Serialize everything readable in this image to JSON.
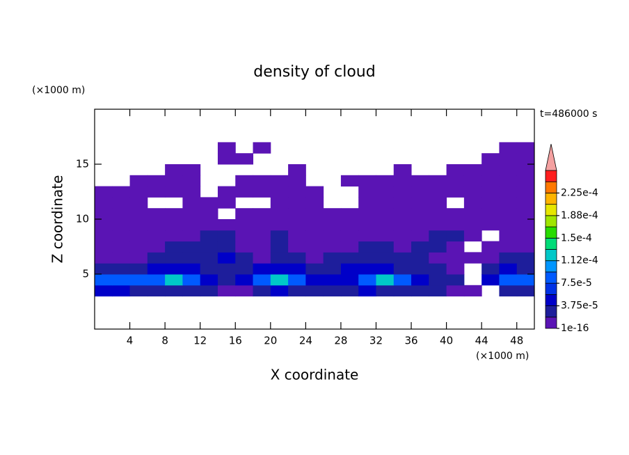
{
  "chart_data": {
    "type": "contour",
    "title": "density of cloud",
    "x_label": "X coordinate",
    "y_label": "Z coordinate",
    "x_unit": "(×1000 m)",
    "y_unit": "(×1000 m)",
    "annotation": "t=486000 s",
    "xlim": [
      0,
      50
    ],
    "xticks": [
      4,
      8,
      12,
      16,
      20,
      24,
      28,
      32,
      36,
      40,
      44,
      48
    ],
    "ylim": [
      0,
      20
    ],
    "yticks": [
      5,
      10,
      15
    ],
    "x": [
      1,
      3,
      5,
      7,
      9,
      11,
      13,
      15,
      17,
      19,
      21,
      23,
      25,
      27,
      29,
      31,
      33,
      35,
      37,
      39,
      41,
      43,
      45,
      47,
      49
    ],
    "z": [
      3.5,
      4.5,
      5.5,
      6.5,
      7.5,
      8.5,
      9.5,
      10.5,
      11.5,
      12.5,
      13.5,
      14.5,
      15.5,
      16.5
    ],
    "values": [
      [
        5e-05,
        5e-05,
        3e-05,
        3e-05,
        3e-05,
        3e-05,
        3e-05,
        1e-05,
        1e-05,
        3e-05,
        5e-05,
        3e-05,
        3e-05,
        3e-05,
        3e-05,
        5e-05,
        3e-05,
        3e-05,
        3e-05,
        3e-05,
        1e-05,
        1e-05,
        null,
        3e-05,
        3e-05
      ],
      [
        8e-05,
        8e-05,
        8e-05,
        8e-05,
        0.00012,
        8e-05,
        5e-05,
        3e-05,
        5e-05,
        8e-05,
        0.00012,
        8e-05,
        5e-05,
        5e-05,
        5e-05,
        8e-05,
        0.00012,
        8e-05,
        5e-05,
        3e-05,
        3e-05,
        null,
        5e-05,
        8e-05,
        8e-05
      ],
      [
        3e-05,
        3e-05,
        3e-05,
        5e-05,
        5e-05,
        5e-05,
        3e-05,
        3e-05,
        3e-05,
        5e-05,
        5e-05,
        5e-05,
        3e-05,
        3e-05,
        5e-05,
        5e-05,
        5e-05,
        3e-05,
        3e-05,
        3e-05,
        1e-05,
        null,
        3e-05,
        5e-05,
        3e-05
      ],
      [
        1e-05,
        1e-05,
        1e-05,
        3e-05,
        3e-05,
        3e-05,
        3e-05,
        5e-05,
        3e-05,
        1e-05,
        3e-05,
        3e-05,
        1e-05,
        3e-05,
        3e-05,
        3e-05,
        3e-05,
        3e-05,
        3e-05,
        1e-05,
        1e-05,
        1e-05,
        1e-05,
        3e-05,
        3e-05
      ],
      [
        1e-05,
        1e-05,
        1e-05,
        1e-05,
        3e-05,
        3e-05,
        3e-05,
        3e-05,
        1e-05,
        1e-05,
        3e-05,
        1e-05,
        1e-05,
        1e-05,
        1e-05,
        3e-05,
        3e-05,
        1e-05,
        3e-05,
        3e-05,
        1e-05,
        null,
        1e-05,
        1e-05,
        1e-05
      ],
      [
        1e-05,
        1e-05,
        1e-05,
        1e-05,
        1e-05,
        1e-05,
        3e-05,
        3e-05,
        1e-05,
        1e-05,
        3e-05,
        1e-05,
        1e-05,
        1e-05,
        1e-05,
        1e-05,
        1e-05,
        1e-05,
        1e-05,
        3e-05,
        3e-05,
        1e-05,
        null,
        1e-05,
        1e-05
      ],
      [
        1e-05,
        1e-05,
        1e-05,
        1e-05,
        1e-05,
        1e-05,
        1e-05,
        1e-05,
        1e-05,
        1e-05,
        1e-05,
        1e-05,
        1e-05,
        1e-05,
        1e-05,
        1e-05,
        1e-05,
        1e-05,
        1e-05,
        1e-05,
        1e-05,
        1e-05,
        1e-05,
        1e-05,
        1e-05
      ],
      [
        1e-05,
        1e-05,
        1e-05,
        1e-05,
        1e-05,
        1e-05,
        1e-05,
        null,
        1e-05,
        1e-05,
        1e-05,
        1e-05,
        1e-05,
        1e-05,
        1e-05,
        1e-05,
        1e-05,
        1e-05,
        1e-05,
        1e-05,
        1e-05,
        1e-05,
        1e-05,
        1e-05,
        1e-05
      ],
      [
        1e-05,
        1e-05,
        1e-05,
        null,
        null,
        1e-05,
        1e-05,
        1e-05,
        null,
        null,
        1e-05,
        1e-05,
        1e-05,
        null,
        null,
        1e-05,
        1e-05,
        1e-05,
        1e-05,
        1e-05,
        null,
        1e-05,
        1e-05,
        1e-05,
        1e-05
      ],
      [
        1e-05,
        1e-05,
        1e-05,
        1e-05,
        1e-05,
        1e-05,
        null,
        1e-05,
        1e-05,
        1e-05,
        1e-05,
        1e-05,
        1e-05,
        null,
        null,
        1e-05,
        1e-05,
        1e-05,
        1e-05,
        1e-05,
        1e-05,
        1e-05,
        1e-05,
        1e-05,
        1e-05
      ],
      [
        null,
        null,
        1e-05,
        1e-05,
        1e-05,
        1e-05,
        null,
        null,
        1e-05,
        1e-05,
        1e-05,
        1e-05,
        null,
        null,
        1e-05,
        1e-05,
        1e-05,
        1e-05,
        1e-05,
        1e-05,
        1e-05,
        1e-05,
        1e-05,
        1e-05,
        1e-05
      ],
      [
        null,
        null,
        null,
        null,
        1e-05,
        1e-05,
        null,
        null,
        null,
        null,
        null,
        1e-05,
        null,
        null,
        null,
        null,
        null,
        1e-05,
        null,
        null,
        1e-05,
        1e-05,
        1e-05,
        1e-05,
        1e-05
      ],
      [
        null,
        null,
        null,
        null,
        null,
        null,
        null,
        1e-05,
        1e-05,
        null,
        null,
        null,
        null,
        null,
        null,
        null,
        null,
        null,
        null,
        null,
        null,
        null,
        1e-05,
        1e-05,
        1e-05
      ],
      [
        null,
        null,
        null,
        null,
        null,
        null,
        null,
        1e-05,
        null,
        1e-05,
        null,
        null,
        null,
        null,
        null,
        null,
        null,
        null,
        null,
        null,
        null,
        null,
        null,
        1e-05,
        1e-05
      ]
    ],
    "levels": [
      1e-16,
      1.875e-05,
      3.75e-05,
      5.625e-05,
      7.5e-05,
      9.375e-05,
      0.0001125,
      0.00013125,
      0.00015,
      0.00016875,
      0.0001875,
      0.00020625,
      0.000225,
      0.00024375,
      0.0002625
    ],
    "colors": [
      "#5a14b4",
      "#1e1e9b",
      "#0000c8",
      "#0032e6",
      "#005aff",
      "#0096ff",
      "#00c8c8",
      "#00dc78",
      "#28dc00",
      "#a0e600",
      "#e6e600",
      "#ffb400",
      "#ff7800",
      "#ff1e1e"
    ],
    "extend_color": "#f4a0a0",
    "colorbar_ticks": [
      {
        "value": 1e-16,
        "label": "1e-16"
      },
      {
        "value": 3.75e-05,
        "label": "3.75e-5"
      },
      {
        "value": 7.5e-05,
        "label": "7.5e-5"
      },
      {
        "value": 0.0001125,
        "label": "1.12e-4"
      },
      {
        "value": 0.00015,
        "label": "1.5e-4"
      },
      {
        "value": 0.0001875,
        "label": "1.88e-4"
      },
      {
        "value": 0.000225,
        "label": "2.25e-4"
      }
    ]
  }
}
